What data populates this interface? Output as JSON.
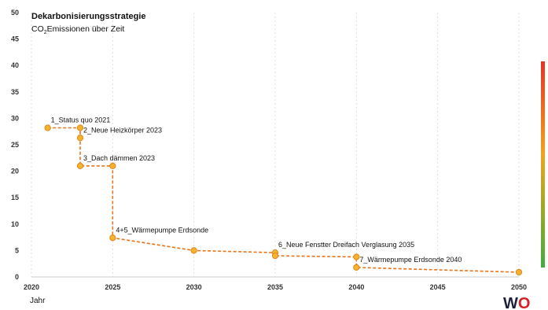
{
  "chart_data": {
    "type": "line",
    "title": "Dekarbonisierungsstrategie",
    "subtitle_main": "CO",
    "subtitle_sub": "2",
    "subtitle_rest": "Emissionen über Zeit",
    "xlabel": "Jahr",
    "ylabel": "",
    "xlim": [
      2020,
      2050
    ],
    "ylim": [
      0,
      50
    ],
    "x_ticks": [
      "2020",
      "2025",
      "2030",
      "2035",
      "2040",
      "2045",
      "2050"
    ],
    "y_ticks": [
      "0",
      "5",
      "10",
      "15",
      "20",
      "25",
      "30",
      "35",
      "40",
      "45",
      "50"
    ],
    "grid": "vertical dashed",
    "series": [
      {
        "points": [
          {
            "x": 2021,
            "y": 28.2
          },
          {
            "x": 2023,
            "y": 28.2
          },
          {
            "x": 2023,
            "y": 26.3
          },
          {
            "x": 2023,
            "y": 21.0
          },
          {
            "x": 2025,
            "y": 21.0
          },
          {
            "x": 2025,
            "y": 7.4
          },
          {
            "x": 2030,
            "y": 5.0
          },
          {
            "x": 2035,
            "y": 4.6
          },
          {
            "x": 2035,
            "y": 4.0
          },
          {
            "x": 2040,
            "y": 3.8
          },
          {
            "x": 2040,
            "y": 1.8
          },
          {
            "x": 2050,
            "y": 0.9
          }
        ]
      }
    ],
    "annotations": [
      {
        "text": "1_Status quo 2021",
        "x": 2021,
        "y": 28.2
      },
      {
        "text": "2_Neue Heizkörper 2023",
        "x": 2023,
        "y": 26.3
      },
      {
        "text": "3_Dach dämmen 2023",
        "x": 2023,
        "y": 21.0
      },
      {
        "text": "4+5_Wärmepumpe Erdsonde",
        "x": 2025,
        "y": 7.4
      },
      {
        "text": "6_Neue Fenstter Dreifach Verglasung 2035",
        "x": 2035,
        "y": 4.6
      },
      {
        "text": "7_Wärmepumpe Erdsonde 2040",
        "x": 2040,
        "y": 1.8
      }
    ],
    "colors": {
      "line": "#e8741a",
      "marker_fill": "#f7b32b",
      "marker_stroke": "#d9861c",
      "grid": "#d8d8d8"
    }
  },
  "logo": {
    "text": "WO",
    "color_w": "#1f1f3f",
    "color_o": "#d61f26"
  }
}
